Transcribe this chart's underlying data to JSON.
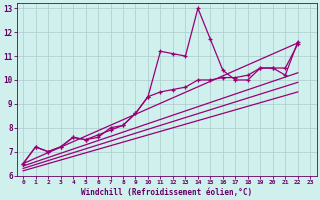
{
  "xlabel": "Windchill (Refroidissement éolien,°C)",
  "bg_color": "#cff0ec",
  "line_color": "#990077",
  "grid_color": "#aacccc",
  "xlim": [
    -0.5,
    23.5
  ],
  "ylim": [
    6,
    13.2
  ],
  "xticks": [
    0,
    1,
    2,
    3,
    4,
    5,
    6,
    7,
    8,
    9,
    10,
    11,
    12,
    13,
    14,
    15,
    16,
    17,
    18,
    19,
    20,
    21,
    22,
    23
  ],
  "yticks": [
    6,
    7,
    8,
    9,
    10,
    11,
    12,
    13
  ],
  "line1_x": [
    0,
    1,
    2,
    3,
    4,
    5,
    6,
    7,
    8,
    9,
    10,
    11,
    12,
    13,
    14,
    15,
    16,
    17,
    18,
    19,
    20,
    21,
    22
  ],
  "line1_y": [
    6.5,
    7.2,
    7.0,
    7.2,
    7.6,
    7.5,
    7.6,
    8.0,
    8.1,
    8.6,
    9.3,
    11.2,
    11.1,
    11.0,
    13.0,
    11.7,
    10.4,
    10.0,
    10.0,
    10.5,
    10.5,
    10.2,
    11.6
  ],
  "line2_x": [
    0,
    1,
    2,
    3,
    4,
    5,
    6,
    7,
    8,
    9,
    10,
    11,
    12,
    13,
    14,
    15,
    16,
    17,
    18,
    19,
    20,
    21,
    22
  ],
  "line2_y": [
    6.5,
    7.2,
    7.0,
    7.2,
    7.6,
    7.5,
    7.7,
    7.9,
    8.1,
    8.6,
    9.3,
    9.5,
    9.6,
    9.7,
    10.0,
    10.0,
    10.1,
    10.1,
    10.2,
    10.5,
    10.5,
    10.5,
    11.5
  ],
  "trend1_x": [
    0,
    22
  ],
  "trend1_y": [
    6.5,
    11.55
  ],
  "trend2_x": [
    0,
    22
  ],
  "trend2_y": [
    6.4,
    10.3
  ],
  "trend3_x": [
    0,
    22
  ],
  "trend3_y": [
    6.3,
    9.9
  ],
  "trend4_x": [
    0,
    22
  ],
  "trend4_y": [
    6.2,
    9.5
  ]
}
